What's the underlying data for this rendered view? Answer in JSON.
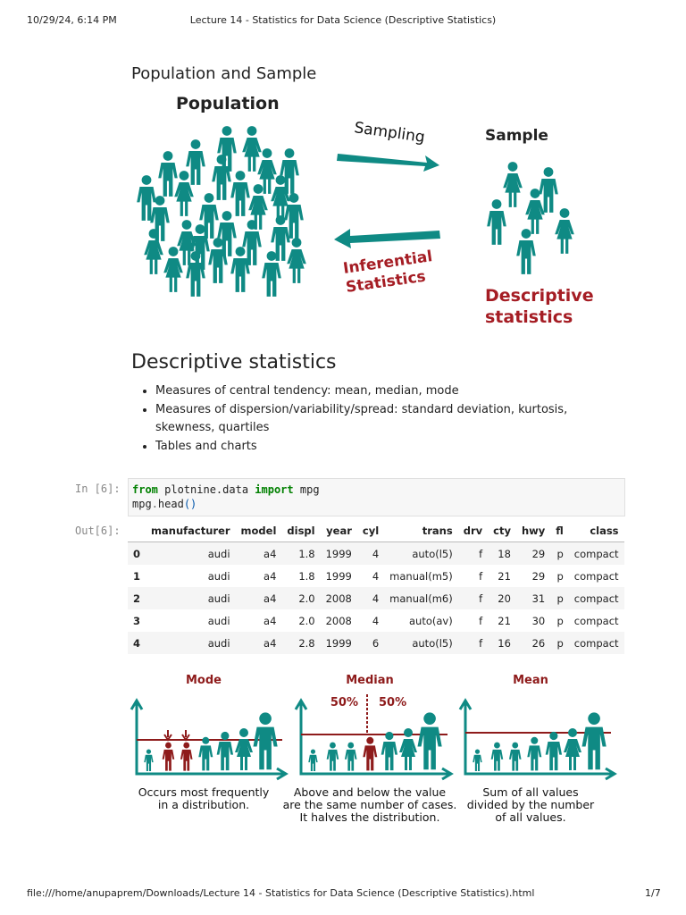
{
  "header": {
    "date": "10/29/24, 6:14 PM",
    "title": "Lecture 14 - Statistics for Data Science (Descriptive Statistics)"
  },
  "footer": {
    "url": "file:///home/anupaprem/Downloads/Lecture 14 - Statistics for Data Science (Descriptive Statistics).html",
    "page": "1/7"
  },
  "section1": {
    "heading": "Population and Sample",
    "diagram": {
      "population": "Population",
      "sampling": "Sampling",
      "sample": "Sample",
      "inferential": [
        "Inferential",
        "Statistics"
      ],
      "descriptive": [
        "Descriptive",
        "statistics"
      ]
    }
  },
  "section2": {
    "heading": "Descriptive statistics",
    "bullets": [
      "Measures of central tendency: mean, median, mode",
      "Measures of dispersion/variability/spread: standard deviation, kurtosis, skewness, quartiles",
      "Tables and charts"
    ]
  },
  "code_cell": {
    "prompt": "In [6]:",
    "lines": [
      [
        "from",
        " plotnine.data ",
        "import",
        " mpg"
      ],
      [
        "mpg",
        ".",
        "head",
        "()"
      ]
    ]
  },
  "output": {
    "prompt": "Out[6]:",
    "table": {
      "columns": [
        "manufacturer",
        "model",
        "displ",
        "year",
        "cyl",
        "trans",
        "drv",
        "cty",
        "hwy",
        "fl",
        "class"
      ],
      "rows": [
        [
          "0",
          "audi",
          "a4",
          "1.8",
          "1999",
          "4",
          "auto(l5)",
          "f",
          "18",
          "29",
          "p",
          "compact"
        ],
        [
          "1",
          "audi",
          "a4",
          "1.8",
          "1999",
          "4",
          "manual(m5)",
          "f",
          "21",
          "29",
          "p",
          "compact"
        ],
        [
          "2",
          "audi",
          "a4",
          "2.0",
          "2008",
          "4",
          "manual(m6)",
          "f",
          "20",
          "31",
          "p",
          "compact"
        ],
        [
          "3",
          "audi",
          "a4",
          "2.0",
          "2008",
          "4",
          "auto(av)",
          "f",
          "21",
          "30",
          "p",
          "compact"
        ],
        [
          "4",
          "audi",
          "a4",
          "2.8",
          "1999",
          "6",
          "auto(l5)",
          "f",
          "16",
          "26",
          "p",
          "compact"
        ]
      ]
    }
  },
  "figure": {
    "panels": [
      {
        "title": "Mode",
        "caption": [
          "Occurs most frequently",
          "in a distribution."
        ]
      },
      {
        "title": "Median",
        "caption": [
          "Above and below the value",
          "are the same number of cases.",
          "It halves the distribution."
        ]
      },
      {
        "title": "Mean",
        "caption": [
          "Sum of all values",
          "divided by the number",
          "of all values."
        ]
      }
    ],
    "median_labels": [
      "50%",
      "50%"
    ]
  }
}
